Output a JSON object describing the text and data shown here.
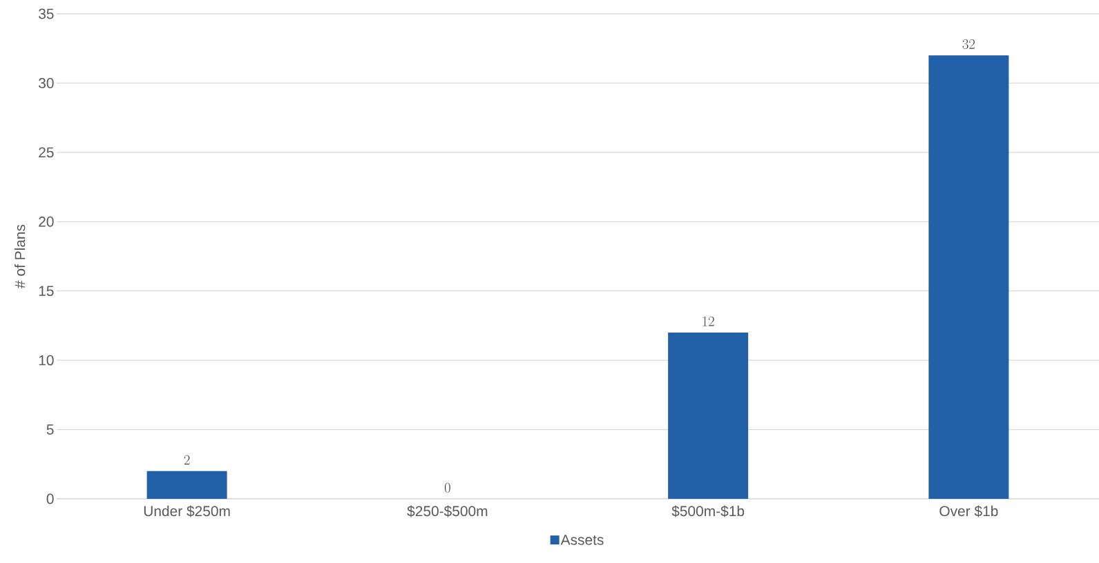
{
  "chart_data": {
    "type": "bar",
    "ylabel": "# of Plans",
    "categories": [
      "Under $250m",
      "$250-$500m",
      "$500m-$1b",
      "Over $1b"
    ],
    "series": [
      {
        "name": "Assets",
        "color": "#2261a8",
        "values": [
          2,
          0,
          12,
          32
        ]
      }
    ],
    "ylim": [
      0,
      35
    ],
    "yticks": [
      0,
      5,
      10,
      15,
      20,
      25,
      30,
      35
    ],
    "grid": "y",
    "legend": "bottom",
    "data_labels": true
  }
}
